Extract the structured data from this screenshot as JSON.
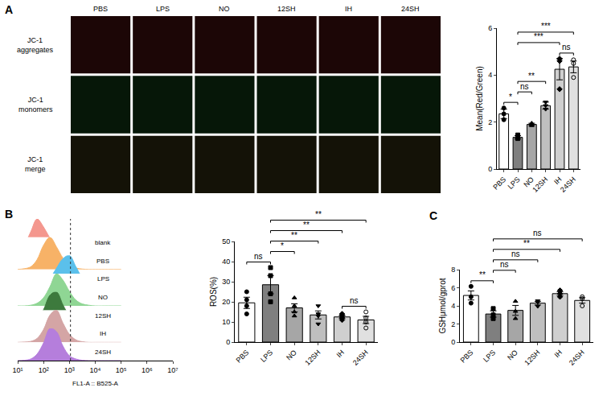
{
  "image_grid": {
    "panel": "A",
    "columns": [
      "PBS",
      "LPS",
      "NO",
      "12SH",
      "IH",
      "24SH"
    ],
    "rows": [
      "JC-1 aggregates",
      "JC-1 monomers",
      "JC-1 merge"
    ]
  },
  "chart_data": [
    {
      "panel": "A",
      "type": "bar",
      "categories": [
        "PBS",
        "LPS",
        "NO",
        "12SH",
        "IH",
        "24SH"
      ],
      "values": [
        2.35,
        1.35,
        1.9,
        2.7,
        4.25,
        4.35
      ],
      "errors": [
        0.2,
        0.07,
        0.05,
        0.15,
        0.45,
        0.25
      ],
      "points": [
        [
          2.1,
          2.35,
          2.6
        ],
        [
          1.3,
          1.33,
          1.45
        ],
        [
          1.85,
          1.9,
          1.95
        ],
        [
          2.55,
          2.7,
          2.85
        ],
        [
          3.4,
          4.6,
          4.7
        ],
        [
          3.9,
          4.5,
          4.65
        ]
      ],
      "colors": [
        "#ffffff",
        "#7f7f7f",
        "#a6a6a6",
        "#bfbfbf",
        "#cfcfcf",
        "#e0e0e0"
      ],
      "marker": [
        "circle",
        "square",
        "triangle-up",
        "triangle-down",
        "diamond",
        "circle-open"
      ],
      "y_label": "Mean(Red/Green)",
      "ylim": [
        0,
        6
      ],
      "yticks": [
        0,
        2,
        4,
        6
      ],
      "grid": false,
      "comparisons": [
        {
          "from": "PBS",
          "to": "LPS",
          "label": "*"
        },
        {
          "from": "LPS",
          "to": "NO",
          "label": "ns"
        },
        {
          "from": "LPS",
          "to": "12SH",
          "label": "**"
        },
        {
          "from": "LPS",
          "to": "IH",
          "label": "***"
        },
        {
          "from": "LPS",
          "to": "24SH",
          "label": "***"
        },
        {
          "from": "IH",
          "to": "24SH",
          "label": "ns"
        }
      ]
    },
    {
      "panel": "B",
      "type": "density",
      "x": [
        10,
        18,
        32,
        56,
        100,
        178,
        316,
        562,
        1000,
        1778,
        3162,
        5623,
        10000,
        31623,
        100000
      ],
      "series": [
        {
          "name": "blank",
          "color": "#f4978e",
          "values": [
            0.02,
            0.2,
            0.6,
            1.0,
            0.75,
            0.4,
            0.15,
            0.06,
            0.02,
            0.01,
            0,
            0,
            0,
            0,
            0
          ]
        },
        {
          "name": "PBS",
          "color": "#f7b267",
          "values": [
            0,
            0.02,
            0.08,
            0.3,
            0.75,
            1.0,
            0.7,
            0.35,
            0.12,
            0.04,
            0.01,
            0,
            0,
            0,
            0
          ]
        },
        {
          "name": "LPS",
          "color": "#5bc0eb",
          "values": [
            0,
            0,
            0.01,
            0.04,
            0.12,
            0.3,
            0.6,
            0.9,
            1.0,
            0.65,
            0.3,
            0.1,
            0.03,
            0,
            0
          ]
        },
        {
          "name": "NO",
          "color": "#8fd694",
          "values": [
            0,
            0,
            0.02,
            0.08,
            0.25,
            0.6,
            1.0,
            0.8,
            0.45,
            0.18,
            0.06,
            0.02,
            0,
            0,
            0
          ]
        },
        {
          "name": "12SH",
          "color": "#3d7a3d",
          "values": [
            0,
            0.01,
            0.04,
            0.15,
            0.45,
            0.9,
            1.0,
            0.6,
            0.25,
            0.08,
            0.02,
            0.01,
            0,
            0,
            0
          ]
        },
        {
          "name": "IH",
          "color": "#d4a5a5",
          "values": [
            0,
            0.01,
            0.03,
            0.12,
            0.4,
            0.85,
            1.0,
            0.6,
            0.25,
            0.08,
            0.02,
            0,
            0,
            0,
            0
          ]
        },
        {
          "name": "24SH",
          "color": "#b57edc",
          "values": [
            0,
            0.01,
            0.05,
            0.2,
            0.55,
            1.0,
            0.9,
            0.45,
            0.15,
            0.05,
            0.01,
            0,
            0,
            0,
            0
          ]
        }
      ],
      "x_label": "FL1-A :: B525-A",
      "log": "x",
      "xlim": [
        10,
        10000000
      ],
      "xticks": [
        {
          "value": 10,
          "label": "10¹"
        },
        {
          "value": 100,
          "label": "10²"
        },
        {
          "value": 1000,
          "label": "10³"
        },
        {
          "value": 10000,
          "label": "10⁴"
        },
        {
          "value": 100000,
          "label": "10⁵"
        },
        {
          "value": 1000000,
          "label": "10⁶"
        },
        {
          "value": 10000000,
          "label": "10⁷"
        }
      ],
      "ylim": [
        0,
        1
      ],
      "tick_labels": "x",
      "threshold": 1100
    },
    {
      "panel": "B",
      "type": "bar",
      "categories": [
        "PBS",
        "LPS",
        "NO",
        "12SH",
        "IH",
        "24SH"
      ],
      "values": [
        19.5,
        28.5,
        17,
        13.5,
        12.5,
        11
      ],
      "errors": [
        2.8,
        4.5,
        2,
        2,
        0.8,
        1.8
      ],
      "points": [
        [
          14,
          18,
          21,
          25
        ],
        [
          20,
          24,
          33,
          37
        ],
        [
          13,
          15,
          18,
          22
        ],
        [
          9,
          13,
          14,
          18
        ],
        [
          11,
          12,
          13,
          14
        ],
        [
          7,
          10,
          12,
          15
        ]
      ],
      "colors": [
        "#ffffff",
        "#7f7f7f",
        "#a6a6a6",
        "#bfbfbf",
        "#cfcfcf",
        "#e0e0e0"
      ],
      "marker": [
        "circle",
        "square",
        "triangle-up",
        "triangle-down",
        "diamond",
        "circle-open"
      ],
      "y_label": "ROS(%)",
      "ylim": [
        0,
        50
      ],
      "yticks": [
        0,
        10,
        20,
        30,
        40,
        50
      ],
      "grid": false,
      "comparisons": [
        {
          "from": "PBS",
          "to": "LPS",
          "label": "ns"
        },
        {
          "from": "LPS",
          "to": "NO",
          "label": "*"
        },
        {
          "from": "LPS",
          "to": "12SH",
          "label": "**"
        },
        {
          "from": "LPS",
          "to": "IH",
          "label": "**"
        },
        {
          "from": "LPS",
          "to": "24SH",
          "label": "**"
        },
        {
          "from": "IH",
          "to": "24SH",
          "label": "ns"
        }
      ]
    },
    {
      "panel": "C",
      "type": "bar",
      "categories": [
        "PBS",
        "LPS",
        "NO",
        "12SH",
        "IH",
        "24SH"
      ],
      "values": [
        5.15,
        3.1,
        3.5,
        4.3,
        5.35,
        4.6
      ],
      "errors": [
        0.5,
        0.35,
        0.55,
        0.2,
        0.2,
        0.3
      ],
      "points": [
        [
          4.3,
          5.0,
          6.15
        ],
        [
          2.6,
          3.0,
          3.7
        ],
        [
          2.6,
          3.4,
          4.5
        ],
        [
          3.95,
          4.4,
          4.55
        ],
        [
          5.0,
          5.35,
          5.7
        ],
        [
          4.0,
          4.8,
          5.0
        ]
      ],
      "colors": [
        "#ffffff",
        "#7f7f7f",
        "#a6a6a6",
        "#bfbfbf",
        "#cfcfcf",
        "#e0e0e0"
      ],
      "marker": [
        "circle",
        "square",
        "triangle-up",
        "triangle-down",
        "diamond",
        "circle-open"
      ],
      "y_label": "GSHμmol/gprot",
      "ylim": [
        0,
        8
      ],
      "yticks": [
        0,
        2,
        4,
        6,
        8
      ],
      "grid": false,
      "comparisons": [
        {
          "from": "PBS",
          "to": "LPS",
          "label": "**"
        },
        {
          "from": "LPS",
          "to": "NO",
          "label": "ns"
        },
        {
          "from": "LPS",
          "to": "12SH",
          "label": "ns"
        },
        {
          "from": "LPS",
          "to": "IH",
          "label": "**"
        },
        {
          "from": "LPS",
          "to": "24SH",
          "label": "ns"
        }
      ]
    }
  ]
}
